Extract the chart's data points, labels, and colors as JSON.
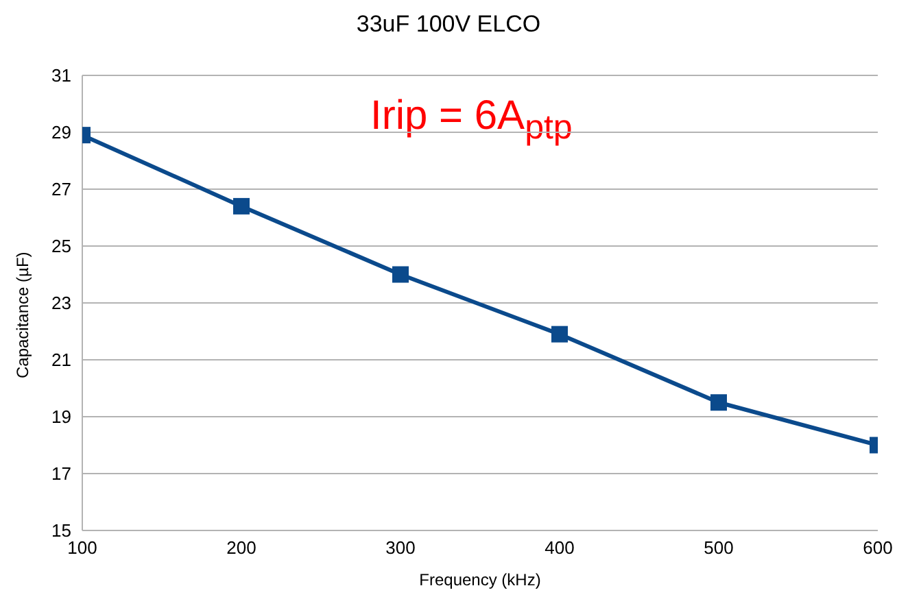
{
  "chart_data": {
    "type": "line",
    "title": "33uF 100V ELCO",
    "xlabel": "Frequency (kHz)",
    "ylabel": "Capacitance (µF)",
    "annotations": [
      "Irip = 6A$_{ptp}$"
    ],
    "x": [
      100,
      200,
      300,
      400,
      500,
      600
    ],
    "series": [
      {
        "color": "#0b4a8c",
        "values": [
          28.9,
          26.4,
          24.0,
          21.9,
          19.5,
          18.0
        ]
      }
    ],
    "xlim": [
      100,
      600
    ],
    "xticks": [
      100,
      200,
      300,
      400,
      500,
      600
    ],
    "ylim": [
      15,
      31
    ],
    "yticks": [
      15,
      17,
      19,
      21,
      23,
      25,
      27,
      29,
      31
    ],
    "grid": "y",
    "legend": false,
    "marker": "square",
    "line_style": "solid"
  }
}
